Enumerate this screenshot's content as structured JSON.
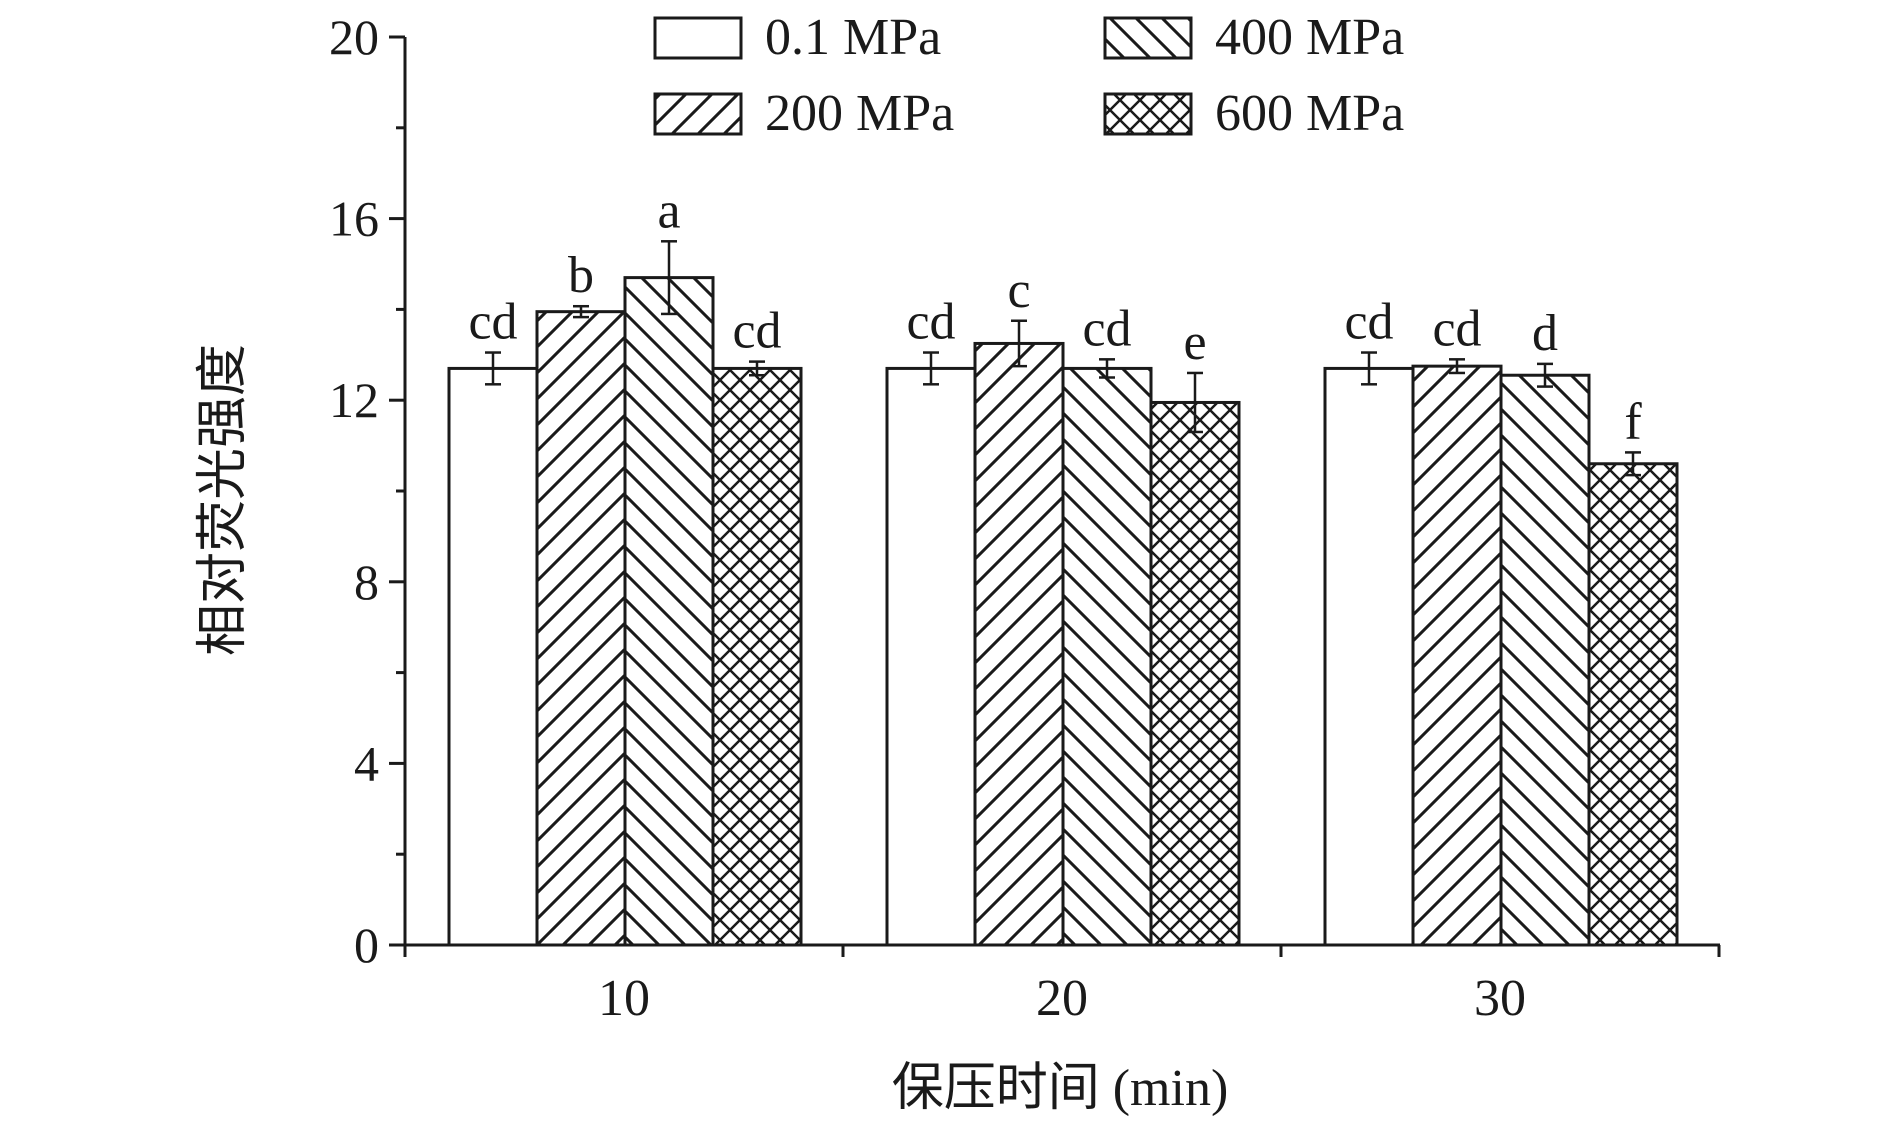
{
  "chart_data": {
    "type": "bar",
    "xlabel": "保压时间 (min)",
    "ylabel": "相对荧光强度",
    "categories": [
      "10",
      "20",
      "30"
    ],
    "ylim": [
      0,
      20
    ],
    "yticks": [
      0,
      4,
      8,
      12,
      16,
      20
    ],
    "grid": false,
    "legend_position": "top",
    "series": [
      {
        "name": "0.1 MPa",
        "pattern": "none",
        "values": [
          12.7,
          12.7,
          12.7
        ],
        "errors": [
          0.35,
          0.35,
          0.35
        ],
        "labels": [
          "cd",
          "cd",
          "cd"
        ]
      },
      {
        "name": "200 MPa",
        "pattern": "forward-hatch",
        "values": [
          13.95,
          13.25,
          12.75
        ],
        "errors": [
          0.12,
          0.5,
          0.15
        ],
        "labels": [
          "b",
          "c",
          "cd"
        ]
      },
      {
        "name": "400 MPa",
        "pattern": "back-hatch",
        "values": [
          14.7,
          12.7,
          12.55
        ],
        "errors": [
          0.8,
          0.2,
          0.25
        ],
        "labels": [
          "a",
          "cd",
          "d"
        ]
      },
      {
        "name": "600 MPa",
        "pattern": "cross-hatch",
        "values": [
          12.7,
          11.95,
          10.6
        ],
        "errors": [
          0.15,
          0.65,
          0.25
        ],
        "labels": [
          "cd",
          "e",
          "f"
        ]
      }
    ],
    "colors": {
      "stroke": "#1a1a1a",
      "fill": "#ffffff"
    }
  }
}
